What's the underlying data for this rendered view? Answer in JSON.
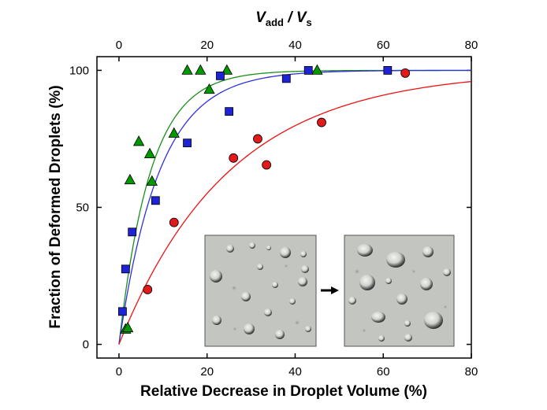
{
  "chart_data": {
    "type": "scatter",
    "ylabel": "Fraction of Deformed Droplets (%)",
    "xlabel": "Relative Decrease in Droplet Volume (%)",
    "top_axis_title": {
      "var1": "V",
      "sub1": "add",
      "sep": " / ",
      "var2": "V",
      "sub2": "s"
    },
    "xlim": [
      -5,
      80
    ],
    "ylim": [
      -5,
      105
    ],
    "x_ticks": [
      0,
      20,
      40,
      60,
      80
    ],
    "y_ticks": [
      0,
      50,
      100
    ],
    "top_ticks": [
      0,
      20,
      40,
      60,
      80
    ],
    "series": [
      {
        "name": "triangles",
        "marker": "triangle",
        "color": "#009900",
        "fit_color": "#1a8f1a",
        "fit_k": 7.2,
        "points": [
          [
            1.5,
            5.5
          ],
          [
            2,
            6
          ],
          [
            2.5,
            60
          ],
          [
            4.5,
            74
          ],
          [
            7,
            69.5
          ],
          [
            7.5,
            59.5
          ],
          [
            12.5,
            77
          ],
          [
            15.5,
            100
          ],
          [
            18.5,
            100
          ],
          [
            20.5,
            93
          ],
          [
            24.5,
            100
          ],
          [
            45,
            100
          ]
        ]
      },
      {
        "name": "squares",
        "marker": "square",
        "color": "#1f23d6",
        "fit_color": "#3030e0",
        "fit_k": 9.2,
        "points": [
          [
            0.8,
            12
          ],
          [
            1.5,
            27.5
          ],
          [
            3,
            41
          ],
          [
            8.3,
            52.5
          ],
          [
            15.5,
            73.5
          ],
          [
            23,
            98
          ],
          [
            25,
            85
          ],
          [
            38,
            97
          ],
          [
            43,
            100
          ],
          [
            61,
            100
          ]
        ]
      },
      {
        "name": "circles",
        "marker": "circle",
        "color": "#e21a1a",
        "fit_color": "#ee1111",
        "fit_k": 25,
        "points": [
          [
            6.5,
            20
          ],
          [
            12.5,
            44.5
          ],
          [
            26,
            68
          ],
          [
            31.5,
            75
          ],
          [
            33.5,
            65.5
          ],
          [
            46,
            81
          ],
          [
            65,
            99
          ]
        ]
      }
    ],
    "inset": {
      "description_free": true,
      "arrow": "right-arrow"
    }
  }
}
